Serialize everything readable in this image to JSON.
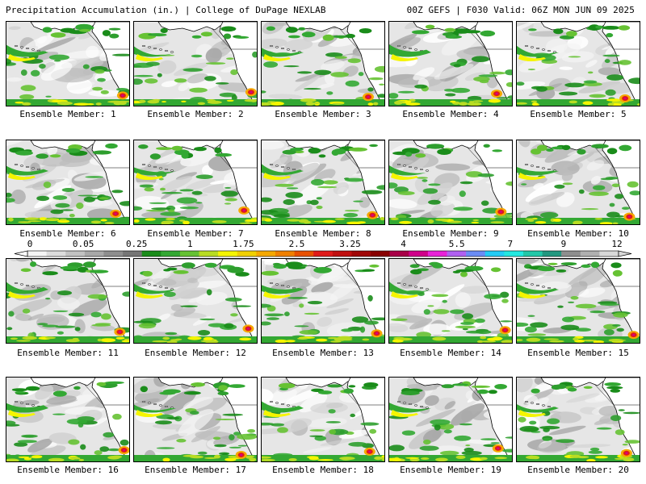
{
  "header": {
    "title_left": "Precipitation Accumulation (in.) | College of DuPage NEXLAB",
    "title_right": "00Z GEFS | F030 Valid: 06Z MON JUN 09 2025"
  },
  "panels": [
    {
      "label": "Ensemble Member: 1"
    },
    {
      "label": "Ensemble Member: 2"
    },
    {
      "label": "Ensemble Member: 3"
    },
    {
      "label": "Ensemble Member: 4"
    },
    {
      "label": "Ensemble Member: 5"
    },
    {
      "label": "Ensemble Member: 6"
    },
    {
      "label": "Ensemble Member: 7"
    },
    {
      "label": "Ensemble Member: 8"
    },
    {
      "label": "Ensemble Member: 9"
    },
    {
      "label": "Ensemble Member: 10"
    },
    {
      "label": "Ensemble Member: 11"
    },
    {
      "label": "Ensemble Member: 12"
    },
    {
      "label": "Ensemble Member: 13"
    },
    {
      "label": "Ensemble Member: 14"
    },
    {
      "label": "Ensemble Member: 15"
    },
    {
      "label": "Ensemble Member: 16"
    },
    {
      "label": "Ensemble Member: 17"
    },
    {
      "label": "Ensemble Member: 18"
    },
    {
      "label": "Ensemble Member: 19"
    },
    {
      "label": "Ensemble Member: 20"
    }
  ],
  "colorbar": {
    "tick_labels": [
      "0",
      "0.05",
      "0.25",
      "1",
      "1.75",
      "2.5",
      "3.25",
      "4",
      "5.5",
      "7",
      "9",
      "12"
    ],
    "colors": [
      "#f4f4f4",
      "#dcdcdc",
      "#c2c2c2",
      "#a8a8a8",
      "#8e8e8e",
      "#767676",
      "#1a8c1a",
      "#33a833",
      "#66c233",
      "#b8dc22",
      "#f5f500",
      "#f0d000",
      "#f5a800",
      "#f08000",
      "#e85000",
      "#e01a1a",
      "#c01010",
      "#a00808",
      "#880000",
      "#a80048",
      "#d0008a",
      "#e822d8",
      "#b060f0",
      "#6a8cf5",
      "#22ccf5",
      "#22e8e0",
      "#22c8a8",
      "#229880",
      "#8e8e8e",
      "#b0b0b0",
      "#d8d8d8"
    ]
  }
}
